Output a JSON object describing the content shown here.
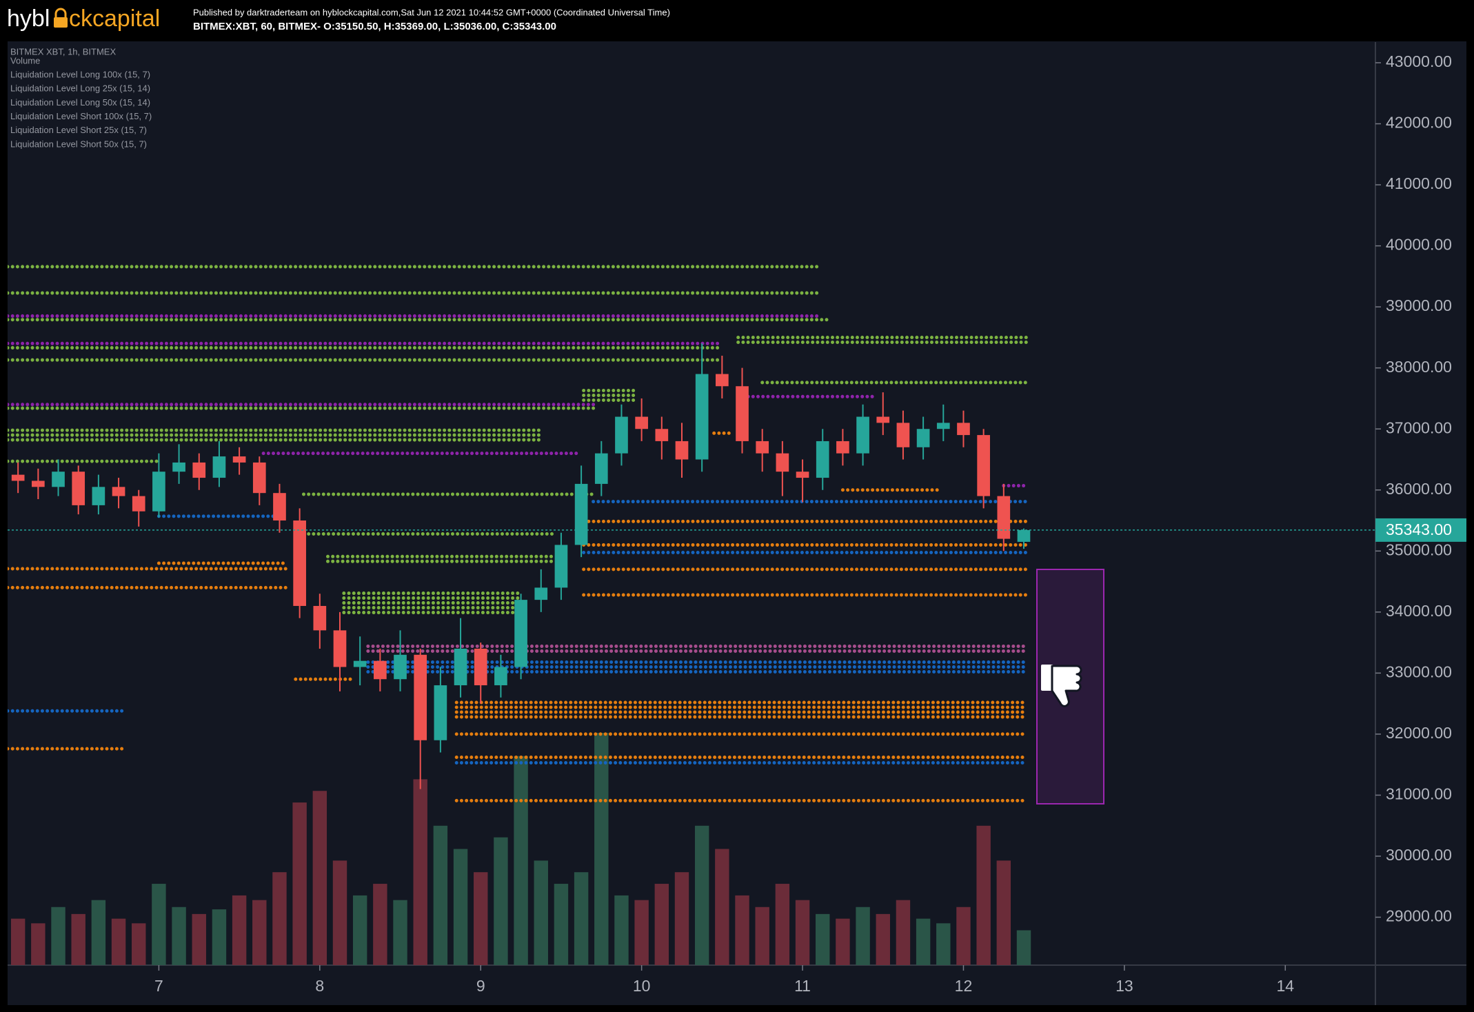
{
  "header": {
    "logo": [
      "hybl",
      "ckcapital"
    ],
    "published": "Published by darktraderteam on hyblockcapital.com,Sat Jun 12 2021 10:44:52 GMT+0000 (Coordinated Universal Time)",
    "symbol_line": "BITMEX:XBT, 60, BITMEX- O:35150.50, H:35369.00, L:35036.00, C:35343.00"
  },
  "chart_data": {
    "type": "candlestick",
    "legend": [
      "BITMEX XBT, 1h, BITMEX",
      "Volume",
      "Liquidation Level Long 100x (15, 7)",
      "Liquidation Level Long 25x (15, 14)",
      "Liquidation Level Long 50x (15, 14)",
      "Liquidation Level Short 100x (15, 7)",
      "Liquidation Level Short 25x (15, 7)",
      "Liquidation Level Short 50x (15, 7)"
    ],
    "x": [
      6.125,
      6.25,
      6.375,
      6.5,
      6.625,
      6.75,
      6.875,
      7.0,
      7.125,
      7.25,
      7.375,
      7.5,
      7.625,
      7.75,
      7.875,
      8.0,
      8.125,
      8.25,
      8.375,
      8.5,
      8.625,
      8.75,
      8.875,
      9.0,
      9.125,
      9.25,
      9.375,
      9.5,
      9.625,
      9.75,
      9.875,
      10.0,
      10.125,
      10.25,
      10.375,
      10.5,
      10.625,
      10.75,
      10.875,
      11.0,
      11.125,
      11.25,
      11.375,
      11.5,
      11.625,
      11.75,
      11.875,
      12.0,
      12.125,
      12.25,
      12.375
    ],
    "open": [
      36250,
      36150,
      36050,
      36300,
      35750,
      36050,
      35900,
      35650,
      36300,
      36450,
      36200,
      36550,
      36450,
      35950,
      35500,
      34100,
      33700,
      33100,
      33200,
      32900,
      33300,
      31900,
      32800,
      33400,
      32800,
      33100,
      34200,
      34400,
      35100,
      36100,
      36600,
      37200,
      37000,
      36800,
      36500,
      37900,
      37700,
      36800,
      36600,
      36300,
      36200,
      36800,
      36600,
      37200,
      37100,
      36700,
      37000,
      37100,
      36900,
      35900,
      35150.5
    ],
    "high": [
      36450,
      36350,
      36500,
      36400,
      36250,
      36200,
      36000,
      36600,
      36750,
      36600,
      36800,
      36700,
      36550,
      36100,
      35700,
      34300,
      34000,
      33600,
      33400,
      33700,
      33400,
      33100,
      33900,
      33500,
      33300,
      34300,
      34700,
      35300,
      36400,
      36800,
      37400,
      37500,
      37200,
      37100,
      38400,
      38200,
      38000,
      37000,
      36800,
      36500,
      37000,
      37000,
      37400,
      37600,
      37300,
      37200,
      37400,
      37300,
      37000,
      36100,
      35369
    ],
    "low": [
      35950,
      35850,
      35900,
      35600,
      35600,
      35700,
      35400,
      35550,
      36100,
      36000,
      36050,
      36250,
      35750,
      35300,
      33900,
      33400,
      32700,
      32800,
      32700,
      32700,
      31100,
      31700,
      32600,
      32500,
      32600,
      32900,
      34000,
      34200,
      34900,
      35900,
      36400,
      36800,
      36500,
      36200,
      36300,
      37500,
      36600,
      36300,
      35900,
      35800,
      36000,
      36400,
      36400,
      36900,
      36500,
      36500,
      36800,
      36700,
      35700,
      35000,
      35036
    ],
    "close": [
      36150,
      36050,
      36300,
      35750,
      36050,
      35900,
      35650,
      36300,
      36450,
      36200,
      36550,
      36450,
      35950,
      35500,
      34100,
      33700,
      33100,
      33200,
      32900,
      33300,
      31900,
      32800,
      33400,
      32800,
      33100,
      34200,
      34400,
      35100,
      36100,
      36600,
      37200,
      37000,
      36800,
      36500,
      37900,
      37700,
      36800,
      36600,
      36300,
      36200,
      36800,
      36600,
      37200,
      37100,
      36700,
      37000,
      37100,
      36900,
      35900,
      35200,
      35343
    ],
    "volume": [
      20,
      18,
      25,
      22,
      28,
      20,
      18,
      35,
      25,
      22,
      24,
      30,
      28,
      40,
      70,
      75,
      45,
      30,
      35,
      28,
      80,
      60,
      50,
      40,
      55,
      90,
      45,
      35,
      40,
      100,
      30,
      28,
      35,
      40,
      60,
      50,
      30,
      25,
      35,
      28,
      22,
      20,
      25,
      22,
      28,
      20,
      18,
      25,
      60,
      45,
      15
    ],
    "vlim": [
      0,
      100
    ],
    "up_color": "#26a69a",
    "down_color": "#ef5350",
    "up_volume_color": "#2a5548",
    "down_volume_color": "#6b2c39",
    "levels": [
      {
        "price": 39658,
        "start": 6.06,
        "end": 11.1,
        "color": "#7cb342",
        "rows": 1
      },
      {
        "price": 39227,
        "start": 6.06,
        "end": 11.1,
        "color": "#7cb342",
        "rows": 1
      },
      {
        "price": 38850,
        "start": 6.06,
        "end": 11.1,
        "color": "#8e24aa",
        "rows": 1
      },
      {
        "price": 38790,
        "start": 6.06,
        "end": 11.16,
        "color": "#7cb342",
        "rows": 1
      },
      {
        "price": 38400,
        "start": 6.06,
        "end": 10.48,
        "color": "#8e24aa",
        "rows": 1
      },
      {
        "price": 38330,
        "start": 6.06,
        "end": 10.48,
        "color": "#7cb342",
        "rows": 1
      },
      {
        "price": 38130,
        "start": 6.06,
        "end": 10.48,
        "color": "#7cb342",
        "rows": 1
      },
      {
        "price": 37400,
        "start": 6.06,
        "end": 9.7,
        "color": "#8e24aa",
        "rows": 1
      },
      {
        "price": 37340,
        "start": 6.06,
        "end": 9.7,
        "color": "#7cb342",
        "rows": 1
      },
      {
        "price": 36900,
        "start": 6.06,
        "end": 9.38,
        "color": "#7cb342",
        "rows": 3
      },
      {
        "price": 36600,
        "start": 7.65,
        "end": 9.6,
        "color": "#8e24aa",
        "rows": 1
      },
      {
        "price": 36470,
        "start": 6.06,
        "end": 7.0,
        "color": "#7cb342",
        "rows": 1
      },
      {
        "price": 35930,
        "start": 7.9,
        "end": 9.7,
        "color": "#7cb342",
        "rows": 1
      },
      {
        "price": 35280,
        "start": 7.9,
        "end": 9.45,
        "color": "#7cb342",
        "rows": 1
      },
      {
        "price": 34870,
        "start": 8.05,
        "end": 9.45,
        "color": "#7cb342",
        "rows": 2
      },
      {
        "price": 34150,
        "start": 8.15,
        "end": 9.25,
        "color": "#7cb342",
        "rows": 5
      },
      {
        "price": 34710,
        "start": 6.06,
        "end": 7.8,
        "color": "#e67e0f",
        "rows": 1
      },
      {
        "price": 34400,
        "start": 6.06,
        "end": 7.8,
        "color": "#e67e0f",
        "rows": 1
      },
      {
        "price": 34800,
        "start": 7.0,
        "end": 7.8,
        "color": "#e67e0f",
        "rows": 1
      },
      {
        "price": 35570,
        "start": 7.0,
        "end": 7.8,
        "color": "#1565c0",
        "rows": 1
      },
      {
        "price": 32380,
        "start": 6.06,
        "end": 6.8,
        "color": "#1565c0",
        "rows": 1
      },
      {
        "price": 31760,
        "start": 6.06,
        "end": 6.8,
        "color": "#e67e0f",
        "rows": 1
      },
      {
        "price": 37550,
        "start": 9.64,
        "end": 9.95,
        "color": "#7cb342",
        "rows": 3
      },
      {
        "price": 35810,
        "start": 9.7,
        "end": 12.39,
        "color": "#1565c0",
        "rows": 1
      },
      {
        "price": 35485,
        "start": 9.64,
        "end": 12.39,
        "color": "#e67e0f",
        "rows": 1
      },
      {
        "price": 35100,
        "start": 9.64,
        "end": 12.39,
        "color": "#e67e0f",
        "rows": 1
      },
      {
        "price": 34975,
        "start": 9.64,
        "end": 12.39,
        "color": "#1565c0",
        "rows": 1
      },
      {
        "price": 34700,
        "start": 9.64,
        "end": 12.39,
        "color": "#e67e0f",
        "rows": 1
      },
      {
        "price": 34280,
        "start": 9.64,
        "end": 12.39,
        "color": "#e67e0f",
        "rows": 1
      },
      {
        "price": 33400,
        "start": 8.3,
        "end": 12.39,
        "color": "#a64d8c",
        "rows": 2
      },
      {
        "price": 33100,
        "start": 8.3,
        "end": 12.39,
        "color": "#1565c0",
        "rows": 3
      },
      {
        "price": 32400,
        "start": 8.85,
        "end": 12.39,
        "color": "#e67e0f",
        "rows": 4
      },
      {
        "price": 32000,
        "start": 8.85,
        "end": 12.39,
        "color": "#e67e0f",
        "rows": 1
      },
      {
        "price": 31620,
        "start": 8.85,
        "end": 12.39,
        "color": "#e67e0f",
        "rows": 1
      },
      {
        "price": 31530,
        "start": 8.85,
        "end": 12.39,
        "color": "#1565c0",
        "rows": 1
      },
      {
        "price": 30910,
        "start": 8.85,
        "end": 12.39,
        "color": "#e67e0f",
        "rows": 1
      },
      {
        "price": 38460,
        "start": 10.6,
        "end": 12.39,
        "color": "#7cb342",
        "rows": 2
      },
      {
        "price": 37760,
        "start": 10.75,
        "end": 12.39,
        "color": "#7cb342",
        "rows": 1
      },
      {
        "price": 37530,
        "start": 10.6,
        "end": 11.45,
        "color": "#8e24aa",
        "rows": 1
      },
      {
        "price": 36930,
        "start": 10.45,
        "end": 10.55,
        "color": "#e67e0f",
        "rows": 1
      },
      {
        "price": 36070,
        "start": 12.25,
        "end": 12.39,
        "color": "#8e24aa",
        "rows": 1
      },
      {
        "price": 36000,
        "start": 11.25,
        "end": 11.85,
        "color": "#e67e0f",
        "rows": 1
      },
      {
        "price": 32900,
        "start": 7.85,
        "end": 8.2,
        "color": "#e67e0f",
        "rows": 1
      }
    ],
    "last_price": {
      "value": 35343,
      "label": "35343.00"
    },
    "ylim": [
      28215,
      43339
    ],
    "yticks": [
      {
        "value": 29000,
        "label": "29000.00"
      },
      {
        "value": 30000,
        "label": "30000.00"
      },
      {
        "value": 31000,
        "label": "31000.00"
      },
      {
        "value": 32000,
        "label": "32000.00"
      },
      {
        "value": 33000,
        "label": "33000.00"
      },
      {
        "value": 34000,
        "label": "34000.00"
      },
      {
        "value": 35000,
        "label": "35000.00"
      },
      {
        "value": 36000,
        "label": "36000.00"
      },
      {
        "value": 37000,
        "label": "37000.00"
      },
      {
        "value": 38000,
        "label": "38000.00"
      },
      {
        "value": 39000,
        "label": "39000.00"
      },
      {
        "value": 40000,
        "label": "40000.00"
      },
      {
        "value": 41000,
        "label": "41000.00"
      },
      {
        "value": 42000,
        "label": "42000.00"
      },
      {
        "value": 43000,
        "label": "43000.00"
      }
    ],
    "xlim": [
      6.06,
      14.56
    ],
    "xticks": [
      7,
      8,
      9,
      10,
      11,
      12,
      13,
      14
    ],
    "grid": false
  }
}
